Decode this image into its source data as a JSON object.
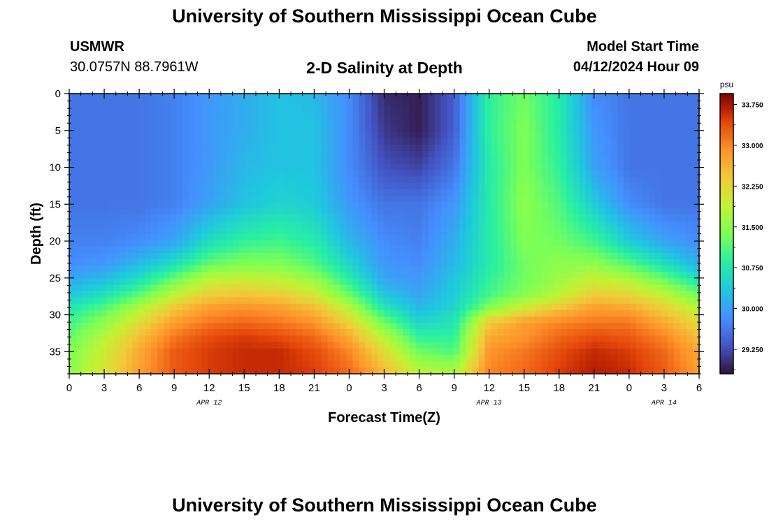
{
  "header": {
    "title": "University of Southern Mississippi Ocean Cube",
    "station": "USMWR",
    "coords": "30.0757N  88.7961W",
    "subtitle": "2-D Salinity at Depth",
    "start_label": "Model Start Time",
    "start_value": "04/12/2024 Hour 09"
  },
  "footer": {
    "title": "University of Southern Mississippi Ocean Cube"
  },
  "chart_data": {
    "type": "heatmap",
    "title": "2-D Salinity at Depth",
    "xlabel": "Forecast Time(Z)",
    "ylabel": "Depth (ft)",
    "x_ticks": [
      "0",
      "3",
      "6",
      "9",
      "12",
      "15",
      "18",
      "21",
      "0",
      "3",
      "6",
      "9",
      "12",
      "15",
      "18",
      "21",
      "0",
      "3",
      "6"
    ],
    "x_tick_hours": [
      0,
      3,
      6,
      9,
      12,
      15,
      18,
      21,
      24,
      27,
      30,
      33,
      36,
      39,
      42,
      45,
      48,
      51,
      54
    ],
    "x_range_hours": [
      0,
      54
    ],
    "date_labels": [
      {
        "label": "APR 12",
        "hour": 12
      },
      {
        "label": "APR 13",
        "hour": 36
      },
      {
        "label": "APR 14",
        "hour": 51
      }
    ],
    "y_ticks": [
      0,
      5,
      10,
      15,
      20,
      25,
      30,
      35
    ],
    "y_range": [
      0,
      38
    ],
    "colorbar": {
      "unit": "psu",
      "range": [
        28.8,
        33.95
      ],
      "tick_labels": [
        "33.750",
        "33.000",
        "32.250",
        "31.500",
        "30.750",
        "30.000",
        "29.250"
      ],
      "tick_values": [
        33.75,
        33.0,
        32.25,
        31.5,
        30.75,
        30.0,
        29.25
      ]
    },
    "time_columns_hours": [
      0,
      3,
      6,
      9,
      12,
      15,
      18,
      21,
      24,
      27,
      30,
      33,
      36,
      39,
      42,
      45,
      48,
      51,
      54
    ],
    "depth_rows_ft": [
      0,
      5,
      10,
      15,
      20,
      23,
      25,
      27,
      29,
      31,
      33,
      35,
      38
    ],
    "salinity_psu": [
      [
        29.6,
        29.6,
        29.6,
        29.7,
        29.9,
        30.1,
        30.3,
        30.2,
        29.8,
        29.0,
        28.9,
        29.4,
        30.9,
        31.3,
        30.8,
        29.8,
        29.6,
        29.6,
        29.6
      ],
      [
        29.6,
        29.6,
        29.6,
        29.7,
        29.9,
        30.1,
        30.3,
        30.3,
        29.8,
        29.1,
        28.9,
        29.4,
        30.9,
        31.4,
        30.8,
        29.9,
        29.6,
        29.6,
        29.6
      ],
      [
        29.6,
        29.6,
        29.6,
        29.7,
        29.9,
        30.2,
        30.3,
        30.3,
        29.8,
        29.3,
        29.2,
        29.6,
        30.8,
        31.4,
        30.9,
        30.0,
        29.6,
        29.6,
        29.6
      ],
      [
        29.6,
        29.6,
        29.6,
        29.7,
        30.0,
        30.3,
        30.5,
        30.4,
        29.9,
        29.6,
        29.6,
        29.9,
        30.8,
        31.5,
        31.1,
        30.4,
        29.8,
        29.6,
        29.6
      ],
      [
        29.7,
        29.7,
        29.8,
        30.0,
        30.6,
        30.9,
        31.0,
        30.8,
        30.2,
        29.8,
        29.7,
        30.1,
        30.8,
        31.4,
        31.3,
        31.0,
        30.4,
        30.0,
        29.8
      ],
      [
        29.8,
        29.9,
        30.2,
        30.6,
        31.2,
        31.4,
        31.4,
        31.1,
        30.5,
        29.9,
        29.8,
        30.2,
        30.8,
        31.3,
        31.5,
        31.5,
        31.1,
        30.6,
        30.1
      ],
      [
        30.0,
        30.2,
        30.6,
        31.2,
        31.8,
        31.9,
        31.8,
        31.5,
        30.8,
        30.0,
        29.9,
        30.3,
        30.9,
        31.3,
        31.6,
        31.9,
        31.7,
        31.2,
        30.6
      ],
      [
        30.3,
        30.6,
        31.1,
        31.8,
        32.3,
        32.4,
        32.3,
        32.0,
        31.2,
        30.3,
        30.0,
        30.4,
        31.0,
        31.4,
        31.8,
        32.3,
        32.2,
        31.8,
        31.2
      ],
      [
        30.7,
        31.1,
        31.7,
        32.4,
        32.8,
        32.9,
        32.8,
        32.5,
        31.8,
        30.7,
        30.2,
        30.5,
        31.4,
        32.0,
        32.4,
        32.8,
        32.7,
        32.3,
        31.8
      ],
      [
        31.0,
        31.5,
        32.2,
        32.8,
        33.1,
        33.2,
        33.1,
        32.9,
        32.3,
        31.3,
        30.5,
        30.7,
        32.4,
        32.8,
        33.0,
        33.1,
        33.1,
        32.7,
        32.2
      ],
      [
        31.2,
        31.8,
        32.5,
        33.1,
        33.4,
        33.5,
        33.4,
        33.2,
        32.7,
        31.8,
        30.9,
        30.9,
        32.7,
        32.9,
        33.2,
        33.4,
        33.3,
        33.0,
        32.5
      ],
      [
        31.4,
        32.0,
        32.7,
        33.3,
        33.5,
        33.6,
        33.6,
        33.4,
        33.0,
        32.2,
        31.3,
        31.1,
        32.9,
        33.1,
        33.4,
        33.6,
        33.5,
        33.2,
        32.7
      ],
      [
        31.5,
        32.1,
        32.8,
        33.3,
        33.5,
        33.6,
        33.6,
        33.5,
        33.2,
        32.6,
        31.9,
        31.8,
        33.0,
        33.2,
        33.5,
        33.7,
        33.6,
        33.3,
        32.8
      ]
    ]
  }
}
